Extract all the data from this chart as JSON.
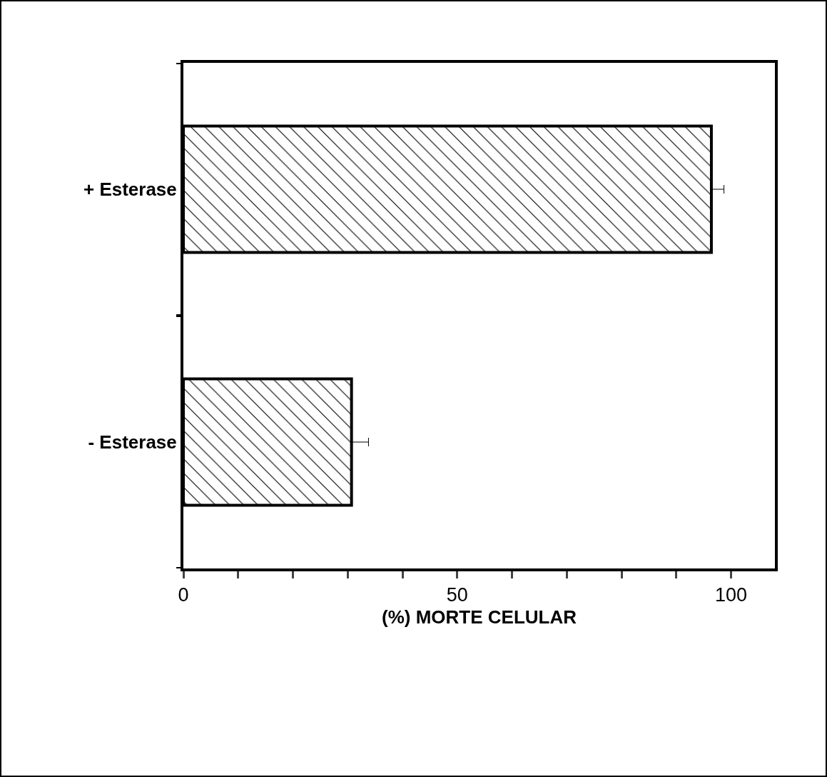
{
  "chart_data": {
    "type": "bar",
    "orientation": "horizontal",
    "xlabel": "(%) MORTE CELULAR",
    "categories": [
      "+ Esterase",
      "- Esterase"
    ],
    "values": [
      96.4,
      30.7
    ],
    "errors": [
      [
        96.4,
        98.7
      ],
      [
        30.7,
        33.8
      ]
    ],
    "color": "#000000",
    "xlim": [
      0,
      108
    ],
    "xticks": [
      0,
      {
        "value": 10,
        "label": null
      },
      {
        "value": 20,
        "label": null
      },
      {
        "value": 30,
        "label": null
      },
      {
        "value": 40,
        "label": null
      },
      50,
      {
        "value": 60,
        "label": null
      },
      {
        "value": 70,
        "label": null
      },
      {
        "value": 80,
        "label": null
      },
      {
        "value": 90,
        "label": null
      },
      100
    ],
    "grid": false,
    "legend": false
  }
}
